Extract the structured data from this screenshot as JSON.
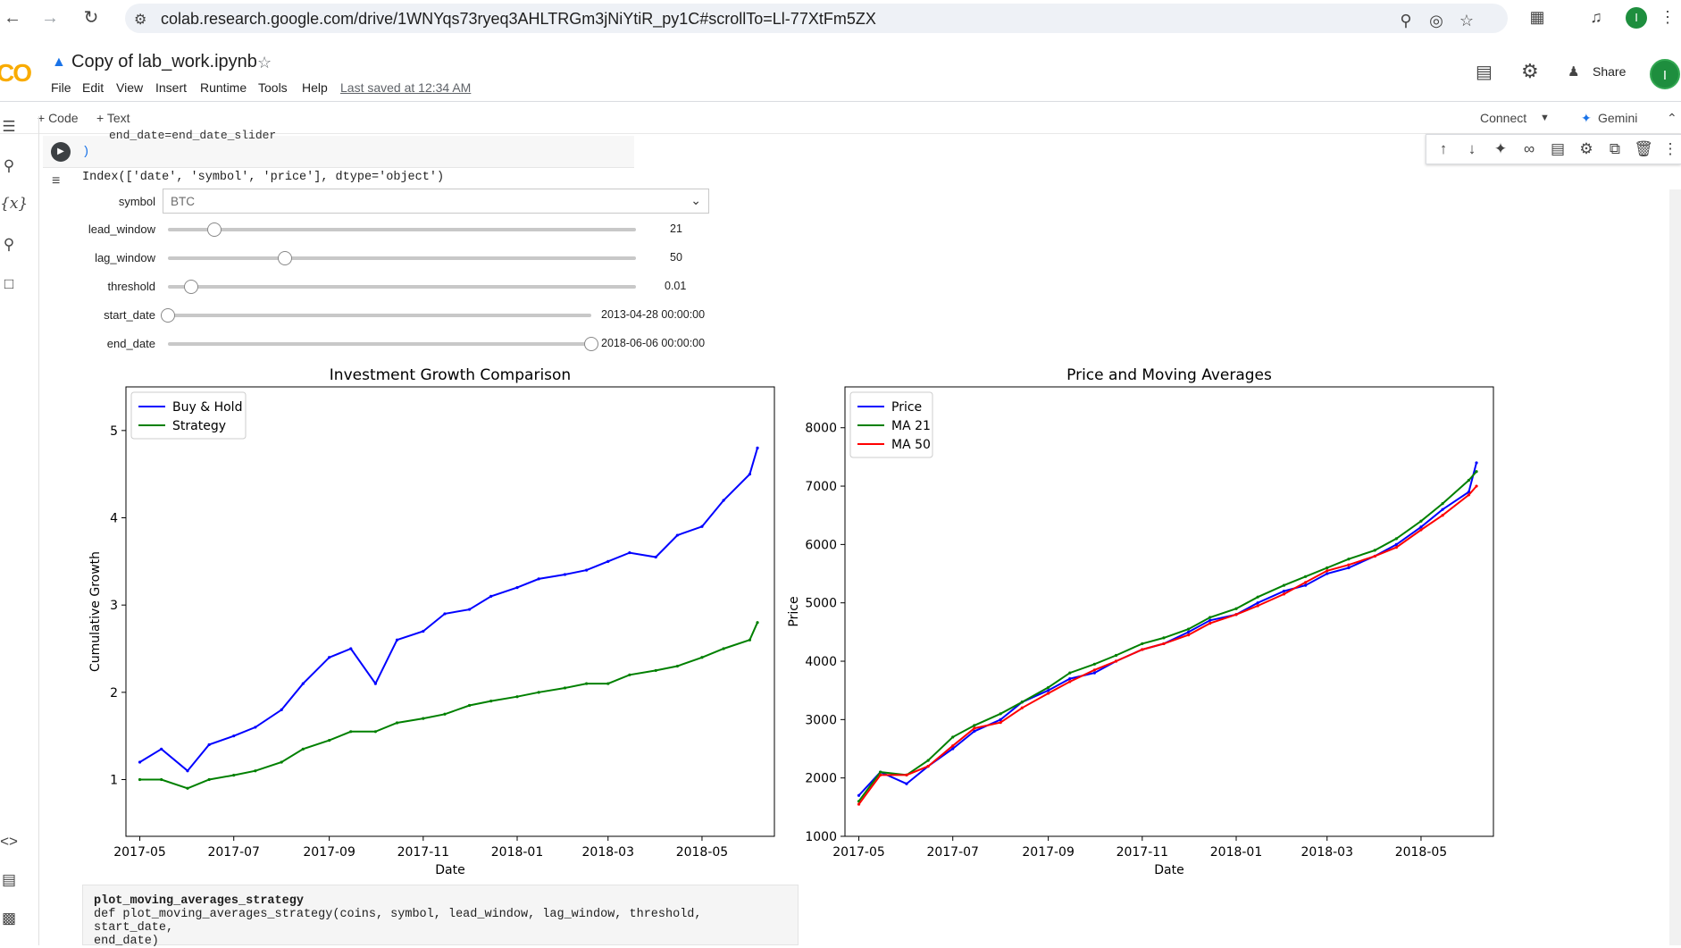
{
  "browser": {
    "url": "colab.research.google.com/drive/1WNYqs73ryeq3AHLTRGm3jNiYtiR_py1C#scrollTo=Ll-77XtFm5ZX",
    "avatar_letter": "I"
  },
  "header": {
    "logo": "CO",
    "title": "Copy of lab_work.ipynb",
    "menus": [
      "File",
      "Edit",
      "View",
      "Insert",
      "Runtime",
      "Tools",
      "Help"
    ],
    "last_saved": "Last saved at 12:34 AM",
    "share_label": "Share",
    "avatar_letter": "I"
  },
  "toolbar": {
    "code_label": "+ Code",
    "text_label": "+ Text",
    "connect_label": "Connect",
    "gemini_label": "Gemini"
  },
  "cell": {
    "partial_code": "end_date=end_date_slider",
    "output_paren": ")",
    "index_line": "Index(['date', 'symbol', 'price'], dtype='object')"
  },
  "widgets": {
    "symbol": {
      "label": "symbol",
      "value": "BTC"
    },
    "lead_window": {
      "label": "lead_window",
      "value": "21",
      "fraction": 0.1
    },
    "lag_window": {
      "label": "lag_window",
      "value": "50",
      "fraction": 0.25
    },
    "threshold": {
      "label": "threshold",
      "value": "0.01",
      "fraction": 0.05
    },
    "start_date": {
      "label": "start_date",
      "value": "2013-04-28 00:00:00",
      "fraction": 0.0
    },
    "end_date": {
      "label": "end_date",
      "value": "2018-06-06 00:00:00",
      "fraction": 1.0
    }
  },
  "doc": {
    "name": "plot_moving_averages_strategy",
    "signature": "def plot_moving_averages_strategy(coins, symbol, lead_window, lag_window, threshold, start_date,",
    "signature2": "end_date)"
  },
  "colors": {
    "blue": "#0000ff",
    "green": "#008000",
    "red": "#ff0000"
  },
  "chart_data": [
    {
      "type": "line",
      "title": "Investment Growth Comparison",
      "xlabel": "Date",
      "ylabel": "Cumulative Growth",
      "x_ticks": [
        "2017-05",
        "2017-07",
        "2017-09",
        "2017-11",
        "2018-01",
        "2018-03",
        "2018-05"
      ],
      "y_ticks": [
        1,
        2,
        3,
        4,
        5
      ],
      "ylim": [
        0.35,
        5.5
      ],
      "x_range": [
        "2017-04-22",
        "2018-06-17"
      ],
      "legend": "top-left",
      "series": [
        {
          "name": "Buy & Hold",
          "color": "#0000ff",
          "x": [
            "2017-05-01",
            "2017-05-15",
            "2017-06-01",
            "2017-06-15",
            "2017-07-01",
            "2017-07-15",
            "2017-08-01",
            "2017-08-15",
            "2017-09-01",
            "2017-09-15",
            "2017-10-01",
            "2017-10-15",
            "2017-11-01",
            "2017-11-15",
            "2017-12-01",
            "2017-12-15",
            "2018-01-01",
            "2018-01-15",
            "2018-02-01",
            "2018-02-15",
            "2018-03-01",
            "2018-03-15",
            "2018-04-01",
            "2018-04-15",
            "2018-05-01",
            "2018-05-15",
            "2018-06-01",
            "2018-06-06"
          ],
          "values": [
            1.2,
            1.35,
            1.1,
            1.4,
            1.5,
            1.6,
            1.8,
            2.1,
            2.4,
            2.5,
            2.1,
            2.6,
            2.7,
            2.9,
            2.95,
            3.1,
            3.2,
            3.3,
            3.35,
            3.4,
            3.5,
            3.6,
            3.55,
            3.8,
            3.9,
            4.2,
            4.5,
            4.8
          ]
        },
        {
          "name": "Strategy",
          "color": "#008000",
          "x": [
            "2017-05-01",
            "2017-05-15",
            "2017-06-01",
            "2017-06-15",
            "2017-07-01",
            "2017-07-15",
            "2017-08-01",
            "2017-08-15",
            "2017-09-01",
            "2017-09-15",
            "2017-10-01",
            "2017-10-15",
            "2017-11-01",
            "2017-11-15",
            "2017-12-01",
            "2017-12-15",
            "2018-01-01",
            "2018-01-15",
            "2018-02-01",
            "2018-02-15",
            "2018-03-01",
            "2018-03-15",
            "2018-04-01",
            "2018-04-15",
            "2018-05-01",
            "2018-05-15",
            "2018-06-01",
            "2018-06-06"
          ],
          "values": [
            1.0,
            1.0,
            0.9,
            1.0,
            1.05,
            1.1,
            1.2,
            1.35,
            1.45,
            1.55,
            1.55,
            1.65,
            1.7,
            1.75,
            1.85,
            1.9,
            1.95,
            2.0,
            2.05,
            2.1,
            2.1,
            2.2,
            2.25,
            2.3,
            2.4,
            2.5,
            2.6,
            2.8
          ]
        }
      ]
    },
    {
      "type": "line",
      "title": "Price and Moving Averages",
      "xlabel": "Date",
      "ylabel": "Price",
      "x_ticks": [
        "2017-05",
        "2017-07",
        "2017-09",
        "2017-11",
        "2018-01",
        "2018-03",
        "2018-05"
      ],
      "y_ticks": [
        1000,
        2000,
        3000,
        4000,
        5000,
        6000,
        7000,
        8000
      ],
      "ylim": [
        1000,
        8700
      ],
      "x_range": [
        "2017-04-22",
        "2018-06-17"
      ],
      "legend": "top-left",
      "series": [
        {
          "name": "Price",
          "color": "#0000ff",
          "x": [
            "2017-05-01",
            "2017-05-15",
            "2017-06-01",
            "2017-06-15",
            "2017-07-01",
            "2017-07-15",
            "2017-08-01",
            "2017-08-15",
            "2017-09-01",
            "2017-09-15",
            "2017-10-01",
            "2017-10-15",
            "2017-11-01",
            "2017-11-15",
            "2017-12-01",
            "2017-12-15",
            "2018-01-01",
            "2018-01-15",
            "2018-02-01",
            "2018-02-15",
            "2018-03-01",
            "2018-03-15",
            "2018-04-01",
            "2018-04-15",
            "2018-05-01",
            "2018-05-15",
            "2018-06-01",
            "2018-06-06"
          ],
          "values": [
            1700,
            2100,
            1900,
            2200,
            2500,
            2800,
            3000,
            3300,
            3500,
            3700,
            3800,
            4000,
            4200,
            4300,
            4500,
            4700,
            4800,
            5000,
            5200,
            5300,
            5500,
            5600,
            5800,
            6000,
            6300,
            6600,
            6900,
            7400
          ]
        },
        {
          "name": "MA 21",
          "color": "#008000",
          "x": [
            "2017-05-01",
            "2017-05-15",
            "2017-06-01",
            "2017-06-15",
            "2017-07-01",
            "2017-07-15",
            "2017-08-01",
            "2017-08-15",
            "2017-09-01",
            "2017-09-15",
            "2017-10-01",
            "2017-10-15",
            "2017-11-01",
            "2017-11-15",
            "2017-12-01",
            "2017-12-15",
            "2018-01-01",
            "2018-01-15",
            "2018-02-01",
            "2018-02-15",
            "2018-03-01",
            "2018-03-15",
            "2018-04-01",
            "2018-04-15",
            "2018-05-01",
            "2018-05-15",
            "2018-06-01",
            "2018-06-06"
          ],
          "values": [
            1600,
            2100,
            2050,
            2300,
            2700,
            2900,
            3100,
            3300,
            3550,
            3800,
            3950,
            4100,
            4300,
            4400,
            4550,
            4750,
            4900,
            5100,
            5300,
            5450,
            5600,
            5750,
            5900,
            6100,
            6400,
            6700,
            7100,
            7250
          ]
        },
        {
          "name": "MA 50",
          "color": "#ff0000",
          "x": [
            "2017-05-01",
            "2017-05-15",
            "2017-06-01",
            "2017-06-15",
            "2017-07-01",
            "2017-07-15",
            "2017-08-01",
            "2017-08-15",
            "2017-09-01",
            "2017-09-15",
            "2017-10-01",
            "2017-10-15",
            "2017-11-01",
            "2017-11-15",
            "2017-12-01",
            "2017-12-15",
            "2018-01-01",
            "2018-01-15",
            "2018-02-01",
            "2018-02-15",
            "2018-03-01",
            "2018-03-15",
            "2018-04-01",
            "2018-04-15",
            "2018-05-01",
            "2018-05-15",
            "2018-06-01",
            "2018-06-06"
          ],
          "values": [
            1550,
            2050,
            2050,
            2200,
            2550,
            2850,
            2950,
            3200,
            3450,
            3650,
            3850,
            4000,
            4200,
            4300,
            4450,
            4650,
            4800,
            4950,
            5150,
            5350,
            5550,
            5650,
            5800,
            5950,
            6250,
            6500,
            6850,
            7000
          ]
        }
      ]
    }
  ]
}
